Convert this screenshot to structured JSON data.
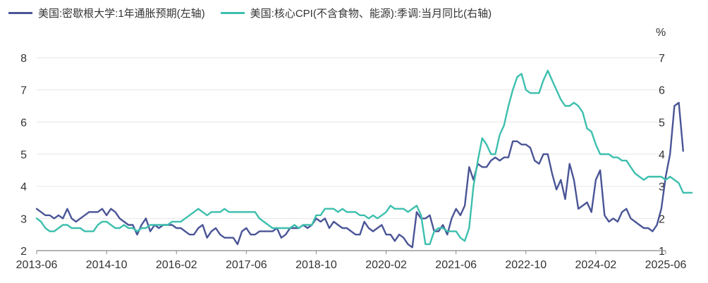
{
  "legend": {
    "series1": "美国:密歇根大学:1年通胀预期(左轴)",
    "series2": "美国:核心CPI(不含食物、能源):季调:当月同比(右轴)"
  },
  "right_unit": "%",
  "colors": {
    "series1": "#4a5596",
    "series2": "#3dbfae",
    "grid": "#e6e6e6",
    "axis": "#888888"
  },
  "chart_data": {
    "type": "line",
    "x_ticks": [
      "2013-06",
      "2014-10",
      "2016-02",
      "2017-06",
      "2018-10",
      "2020-02",
      "2021-06",
      "2022-10",
      "2024-02",
      "2025-06"
    ],
    "left_axis": {
      "ylim": [
        2,
        8
      ],
      "ticks": [
        2,
        3,
        4,
        5,
        6,
        7,
        8
      ]
    },
    "right_axis": {
      "ylim": [
        1,
        7
      ],
      "ticks": [
        1,
        2,
        3,
        4,
        5,
        6,
        7
      ],
      "unit": "%"
    },
    "series": [
      {
        "name": "美国:密歇根大学:1年通胀预期(左轴)",
        "axis": "left",
        "start": "2013-06",
        "values": [
          3.3,
          3.2,
          3.1,
          3.1,
          3.0,
          3.1,
          3.0,
          3.3,
          3.0,
          2.9,
          3.0,
          3.1,
          3.2,
          3.2,
          3.2,
          3.3,
          3.1,
          3.3,
          3.2,
          3.0,
          2.9,
          2.8,
          2.8,
          2.5,
          2.8,
          3.0,
          2.6,
          2.8,
          2.7,
          2.8,
          2.8,
          2.8,
          2.7,
          2.7,
          2.6,
          2.5,
          2.5,
          2.7,
          2.8,
          2.4,
          2.6,
          2.7,
          2.5,
          2.4,
          2.4,
          2.4,
          2.2,
          2.6,
          2.7,
          2.5,
          2.5,
          2.6,
          2.6,
          2.6,
          2.6,
          2.7,
          2.4,
          2.5,
          2.7,
          2.7,
          2.7,
          2.8,
          2.7,
          2.8,
          3.0,
          2.9,
          3.0,
          2.7,
          2.9,
          2.8,
          2.7,
          2.7,
          2.6,
          2.5,
          2.5,
          2.9,
          2.7,
          2.6,
          2.7,
          2.8,
          2.5,
          2.5,
          2.3,
          2.5,
          2.4,
          2.2,
          2.1,
          3.2,
          3.0,
          3.0,
          3.1,
          2.6,
          2.6,
          2.8,
          2.5,
          3.0,
          3.3,
          3.1,
          3.4,
          4.6,
          4.2,
          4.7,
          4.6,
          4.6,
          4.8,
          4.9,
          4.8,
          4.9,
          4.9,
          5.4,
          5.4,
          5.3,
          5.3,
          5.2,
          4.8,
          4.7,
          5.0,
          5.0,
          4.4,
          3.9,
          4.2,
          3.6,
          4.7,
          4.2,
          3.3,
          3.4,
          3.5,
          3.2,
          4.2,
          4.5,
          3.1,
          2.9,
          3.0,
          2.9,
          3.2,
          3.3,
          3.0,
          2.9,
          2.8,
          2.7,
          2.7,
          2.6,
          2.8,
          3.3,
          4.3,
          5.0,
          6.5,
          6.6,
          5.1
        ]
      },
      {
        "name": "美国:核心CPI(不含食物、能源):季调:当月同比(右轴)",
        "axis": "right",
        "start": "2013-06",
        "values": [
          2.0,
          1.9,
          1.7,
          1.6,
          1.6,
          1.7,
          1.8,
          1.8,
          1.7,
          1.7,
          1.7,
          1.6,
          1.6,
          1.6,
          1.8,
          1.9,
          1.9,
          1.8,
          1.7,
          1.7,
          1.8,
          1.7,
          1.7,
          1.6,
          1.7,
          1.7,
          1.8,
          1.8,
          1.8,
          1.8,
          1.8,
          1.9,
          1.9,
          1.9,
          2.0,
          2.1,
          2.2,
          2.3,
          2.2,
          2.1,
          2.2,
          2.2,
          2.2,
          2.3,
          2.2,
          2.2,
          2.2,
          2.2,
          2.2,
          2.2,
          2.2,
          2.0,
          1.9,
          1.8,
          1.7,
          1.7,
          1.7,
          1.7,
          1.7,
          1.8,
          1.7,
          1.8,
          1.8,
          1.8,
          2.1,
          2.1,
          2.3,
          2.3,
          2.3,
          2.2,
          2.3,
          2.2,
          2.2,
          2.2,
          2.1,
          2.1,
          2.0,
          2.1,
          2.0,
          2.1,
          2.2,
          2.4,
          2.3,
          2.3,
          2.3,
          2.2,
          2.3,
          2.4,
          2.1,
          1.2,
          1.2,
          1.6,
          1.7,
          1.7,
          1.6,
          1.6,
          1.6,
          1.4,
          1.3,
          1.7,
          3.0,
          3.8,
          4.5,
          4.3,
          4.0,
          4.0,
          4.6,
          4.9,
          5.5,
          6.0,
          6.4,
          6.5,
          6.0,
          5.9,
          5.9,
          5.9,
          6.3,
          6.6,
          6.3,
          6.0,
          5.7,
          5.5,
          5.5,
          5.6,
          5.5,
          5.3,
          4.8,
          4.7,
          4.3,
          4.0,
          4.0,
          4.0,
          3.9,
          3.9,
          3.8,
          3.8,
          3.6,
          3.4,
          3.3,
          3.2,
          3.3,
          3.3,
          3.3,
          3.3,
          3.2,
          3.3,
          3.2,
          3.1,
          2.8,
          2.8,
          2.8
        ]
      }
    ]
  }
}
